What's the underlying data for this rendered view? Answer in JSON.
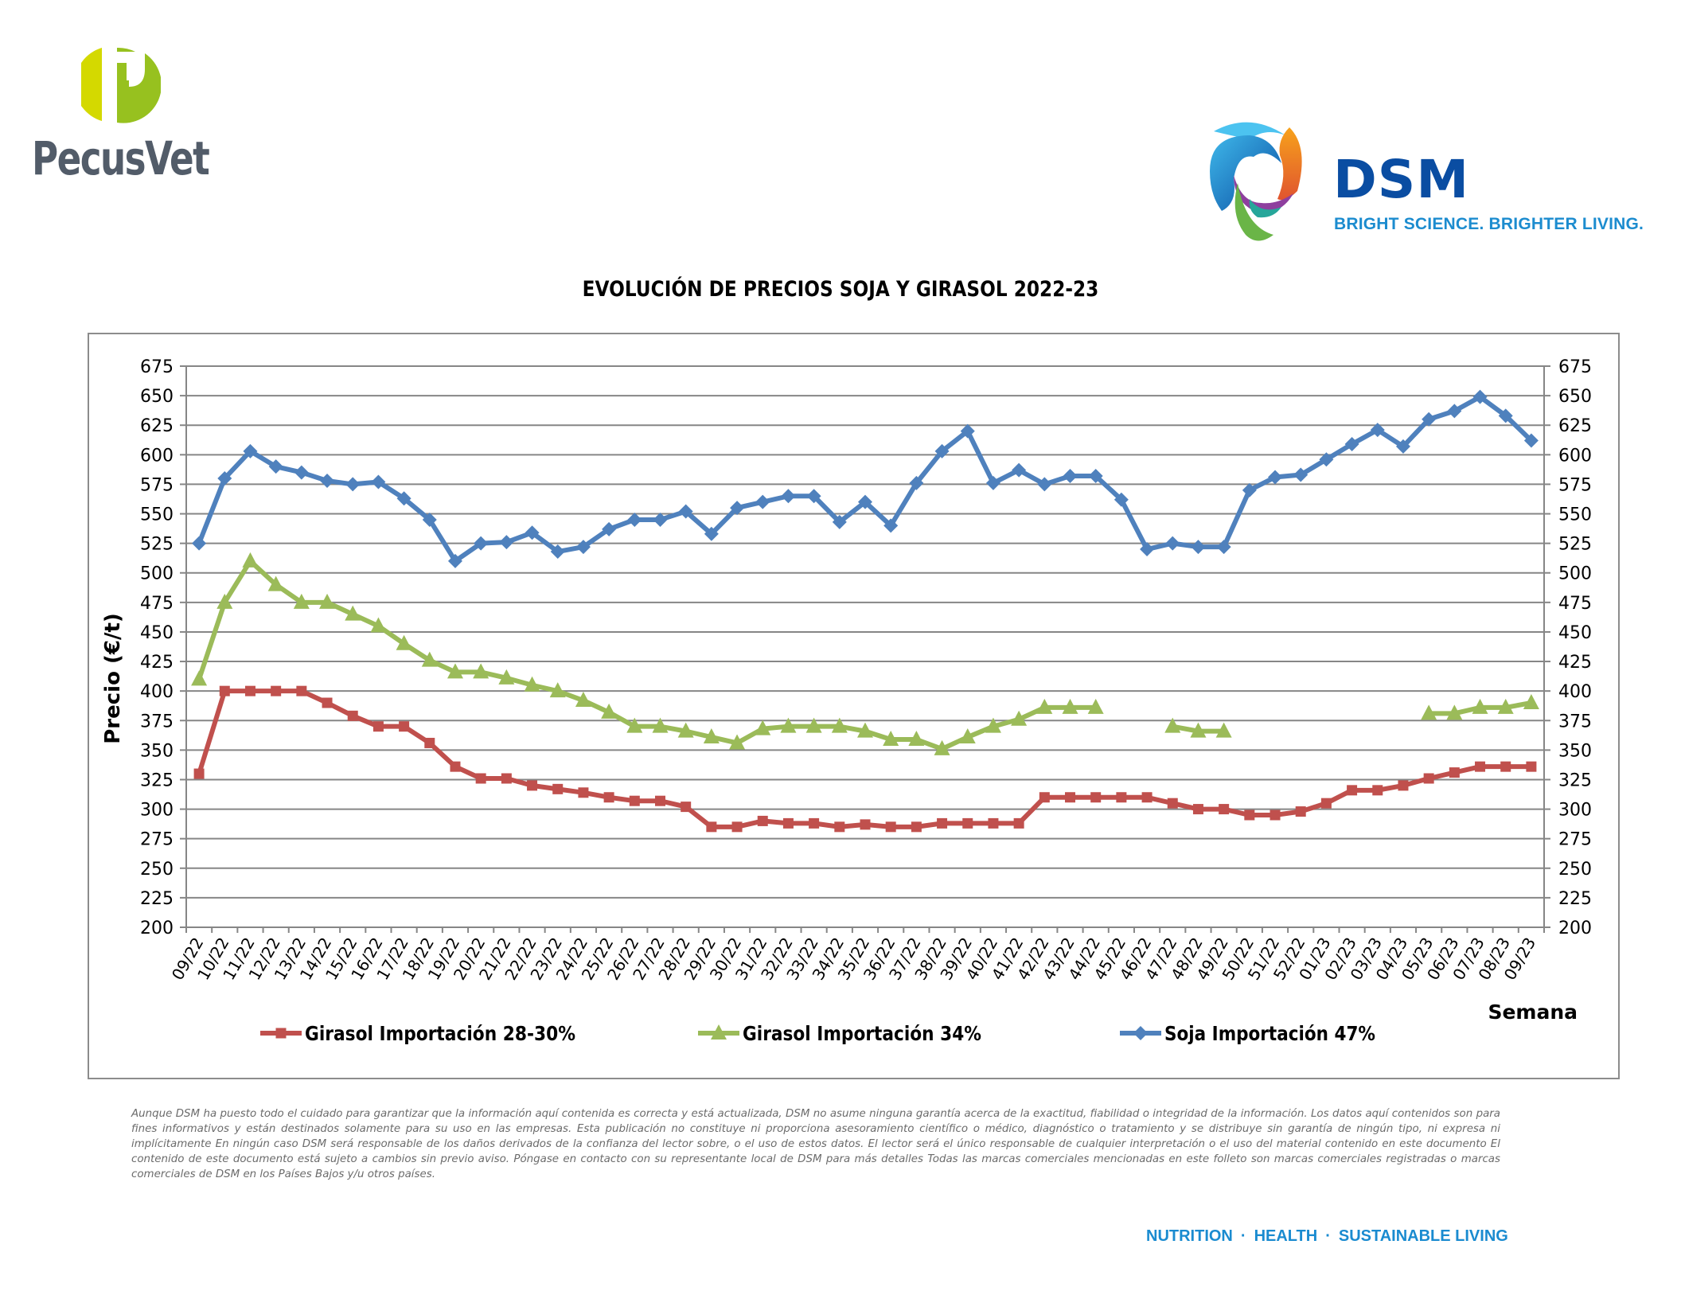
{
  "branding": {
    "left_logo": {
      "name": "PecusVet",
      "icon": "pecusvet-p-logo-icon",
      "colors": {
        "left": "#d4d900",
        "right": "#97c11f",
        "text": "#525c69"
      }
    },
    "right_logo": {
      "name": "DSM",
      "tagline": "BRIGHT SCIENCE. BRIGHTER LIVING.",
      "icon": "dsm-swirl-logo-icon",
      "colors": {
        "word": "#0a4da2",
        "tagline": "#1c8ccf"
      }
    }
  },
  "footer": {
    "tagline_items": [
      "NUTRITION",
      "HEALTH",
      "SUSTAINABLE LIVING"
    ],
    "separator": "·",
    "disclaimer": "Aunque DSM ha puesto todo el cuidado para garantizar que la información aquí contenida es correcta y está actualizada, DSM no asume ninguna garantía acerca de la exactitud, fiabilidad o integridad de la información. Los datos aquí contenidos son para fines informativos y están destinados solamente para su uso en las empresas. Esta publicación no constituye ni proporciona asesoramiento científico o médico, diagnóstico o tratamiento y se distribuye sin garantía de ningún tipo, ni expresa ni implícitamente En ningún caso DSM será responsable de los daños derivados de la confianza del lector sobre, o el uso de estos datos. El lector será el único responsable de cualquier interpretación o el uso del material contenido en este documento El contenido de este documento está sujeto a cambios sin previo aviso. Póngase en contacto con su representante local de DSM para más detalles Todas las marcas comerciales mencionadas en este folleto son marcas comerciales registradas o marcas comerciales de DSM en los Países Bajos y/u otros países."
  },
  "chart_data": {
    "type": "line",
    "title": "EVOLUCIÓN DE PRECIOS SOJA Y GIRASOL 2022-23",
    "xlabel": "Semana",
    "ylabel": "Precio (€/t)",
    "ylim": [
      200,
      675
    ],
    "yticks": [
      200,
      225,
      250,
      275,
      300,
      325,
      350,
      375,
      400,
      425,
      450,
      475,
      500,
      525,
      550,
      575,
      600,
      625,
      650,
      675
    ],
    "secondary_y_axis": true,
    "grid": true,
    "legend_position": "bottom",
    "categories": [
      "09/22",
      "10/22",
      "11/22",
      "12/22",
      "13/22",
      "14/22",
      "15/22",
      "16/22",
      "17/22",
      "18/22",
      "19/22",
      "20/22",
      "21/22",
      "22/22",
      "23/22",
      "24/22",
      "25/22",
      "26/22",
      "27/22",
      "28/22",
      "29/22",
      "30/22",
      "31/22",
      "32/22",
      "33/22",
      "34/22",
      "35/22",
      "36/22",
      "37/22",
      "38/22",
      "39/22",
      "40/22",
      "41/22",
      "42/22",
      "43/22",
      "44/22",
      "45/22",
      "46/22",
      "47/22",
      "48/22",
      "49/22",
      "50/22",
      "51/22",
      "52/22",
      "01/23",
      "02/23",
      "03/23",
      "04/23",
      "05/23",
      "06/23",
      "07/23",
      "08/23",
      "09/23"
    ],
    "series": [
      {
        "name": "Girasol Importación 28-30%",
        "color": "#c0504d",
        "marker": "square",
        "values": [
          330,
          400,
          400,
          400,
          400,
          390,
          379,
          370,
          370,
          356,
          336,
          326,
          326,
          320,
          317,
          314,
          310,
          307,
          307,
          302,
          285,
          285,
          290,
          288,
          288,
          285,
          287,
          285,
          285,
          288,
          288,
          288,
          288,
          310,
          310,
          310,
          310,
          310,
          305,
          300,
          300,
          295,
          295,
          298,
          305,
          316,
          316,
          320,
          326,
          331,
          336,
          336,
          336
        ]
      },
      {
        "name": "Girasol Importación 34%",
        "color": "#9bbb59",
        "marker": "triangle",
        "values": [
          410,
          475,
          510,
          490,
          475,
          475,
          465,
          455,
          440,
          426,
          416,
          416,
          411,
          405,
          400,
          392,
          382,
          370,
          370,
          366,
          361,
          356,
          368,
          370,
          370,
          370,
          366,
          359,
          359,
          351,
          361,
          370,
          376,
          386,
          386,
          386,
          null,
          null,
          370,
          366,
          366,
          null,
          null,
          null,
          null,
          null,
          null,
          null,
          381,
          381,
          386,
          386,
          390
        ]
      },
      {
        "name": "Soja Importación 47%",
        "color": "#4f81bd",
        "marker": "diamond",
        "values": [
          525,
          580,
          603,
          590,
          585,
          578,
          575,
          577,
          563,
          545,
          510,
          525,
          526,
          534,
          518,
          522,
          537,
          545,
          545,
          552,
          533,
          555,
          560,
          565,
          565,
          543,
          560,
          540,
          576,
          603,
          620,
          576,
          587,
          575,
          582,
          582,
          562,
          520,
          525,
          522,
          522,
          570,
          581,
          583,
          596,
          609,
          621,
          607,
          630,
          637,
          649,
          633,
          612
        ]
      }
    ]
  }
}
